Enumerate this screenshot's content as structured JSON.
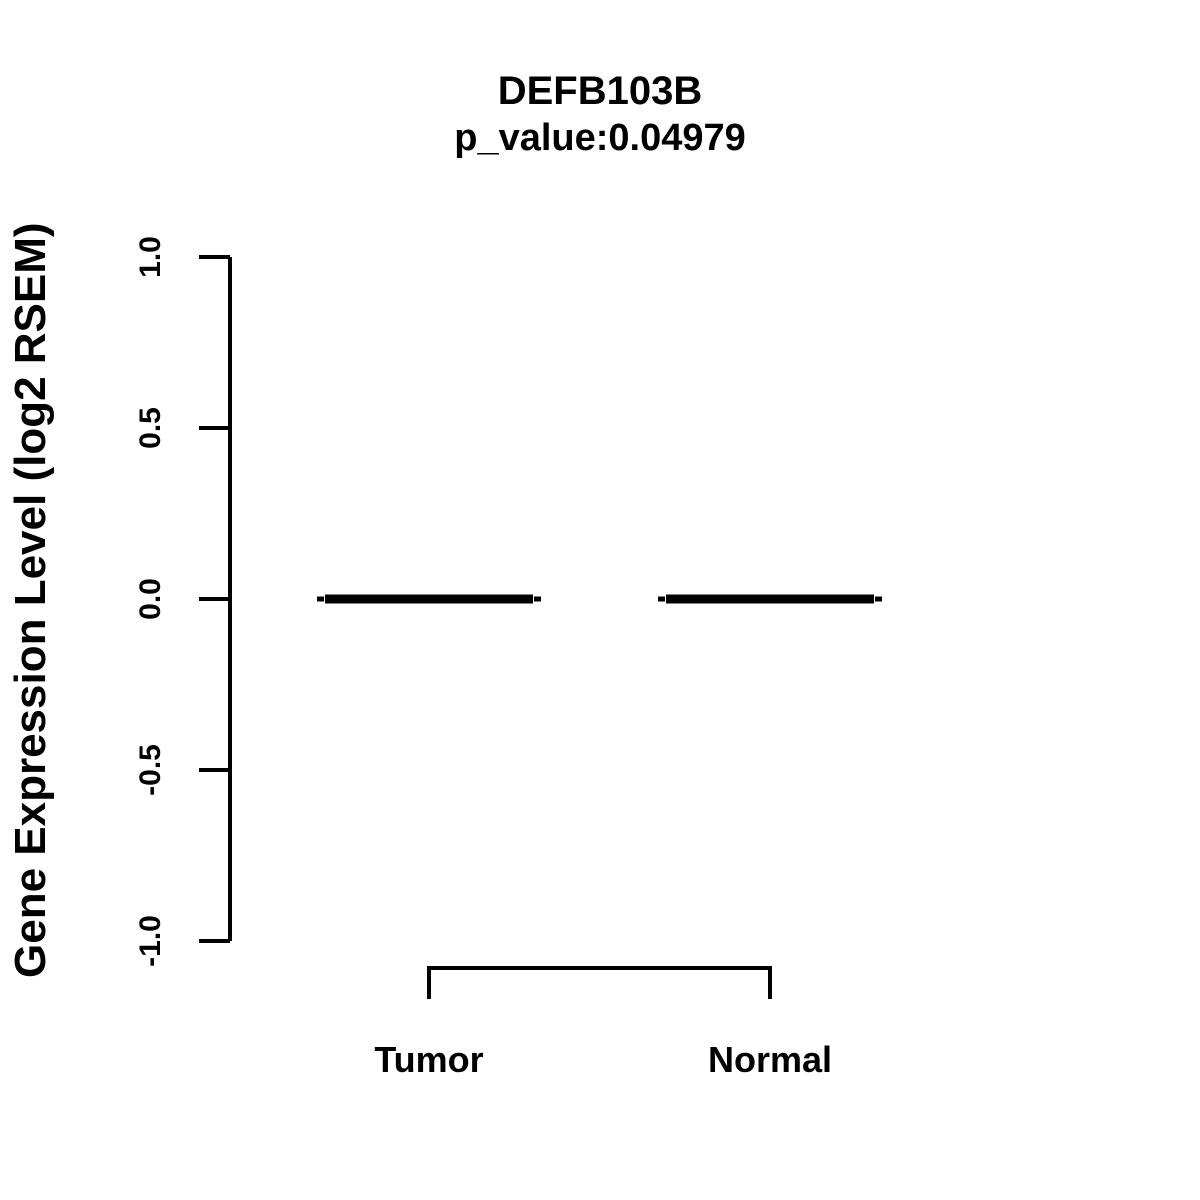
{
  "figure": {
    "title": "DEFB103B",
    "subtitle": "p_value:0.04979",
    "ylabel": "Gene Expression Level (log2 RSEM)"
  },
  "chart_data": {
    "type": "boxplot",
    "title": "DEFB103B",
    "subtitle": "p_value:0.04979",
    "p_value": 0.04979,
    "xlabel": "",
    "ylabel": "Gene Expression Level (log2 RSEM)",
    "categories": [
      "Tumor",
      "Normal"
    ],
    "groups": [
      {
        "name": "Tumor",
        "median": 0.0,
        "q1": 0.0,
        "q3": 0.0,
        "whisker_low": 0.0,
        "whisker_high": 0.0
      },
      {
        "name": "Normal",
        "median": 0.0,
        "q1": 0.0,
        "q3": 0.0,
        "whisker_low": 0.0,
        "whisker_high": 0.0
      }
    ],
    "yticks": [
      -1.0,
      -0.5,
      0.0,
      0.5,
      1.0
    ],
    "ylim": [
      -1.0,
      1.0
    ],
    "grid": false,
    "legend": null,
    "comparison_bracket": {
      "from": "Tumor",
      "to": "Normal"
    },
    "colors": {
      "foreground": "#000000",
      "background": "#ffffff"
    }
  }
}
